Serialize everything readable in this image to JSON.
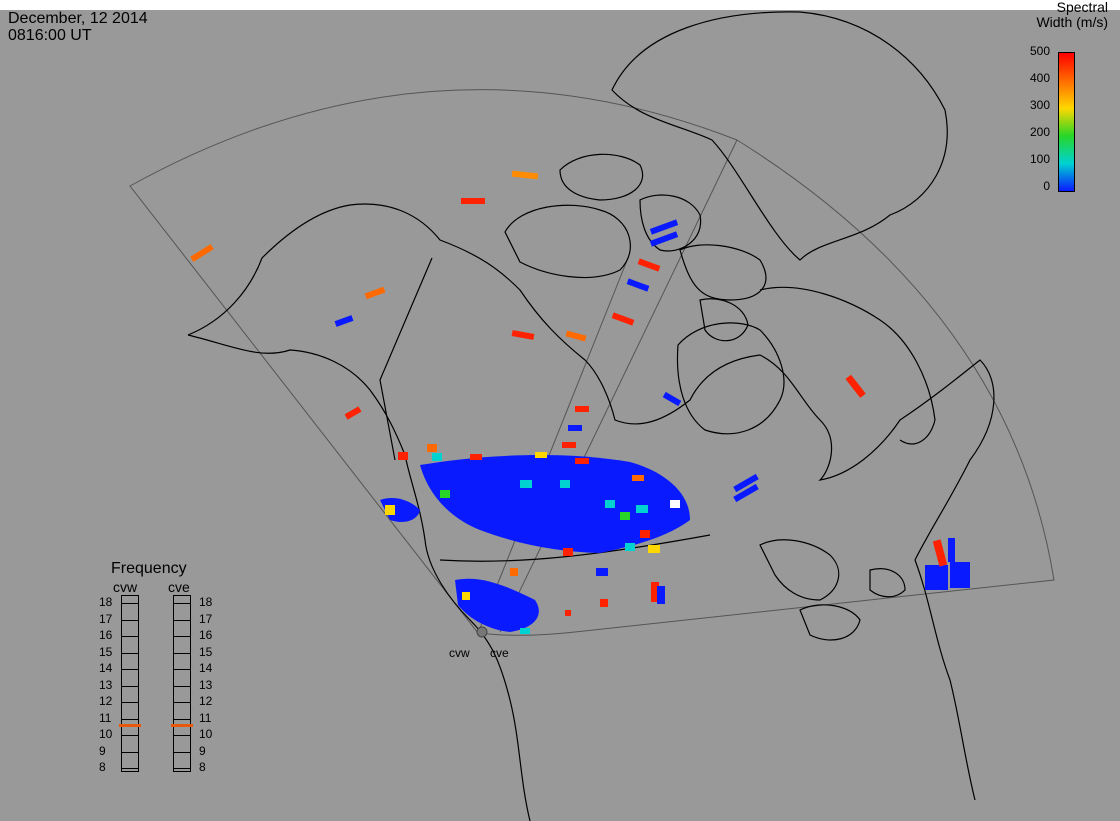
{
  "title": {
    "date": "December, 12 2014",
    "time": "0816:00 UT"
  },
  "colorbar": {
    "title_line1": "Spectral",
    "title_line2": "Width (m/s)",
    "ticks": [
      "500",
      "400",
      "300",
      "200",
      "100",
      "0"
    ],
    "colors": [
      "#ff0000",
      "#ff6a00",
      "#ffd700",
      "#27d627",
      "#00d2d2",
      "#0a1aff"
    ]
  },
  "frequency": {
    "title": "Frequency",
    "radars": [
      "cvw",
      "cve"
    ],
    "scale": [
      "18",
      "17",
      "16",
      "15",
      "14",
      "13",
      "12",
      "11",
      "10",
      "9",
      "8"
    ],
    "values_mhz": [
      10.6,
      10.6
    ],
    "marker_color": "#e8580c"
  },
  "sites": [
    "cvw",
    "cve"
  ]
}
